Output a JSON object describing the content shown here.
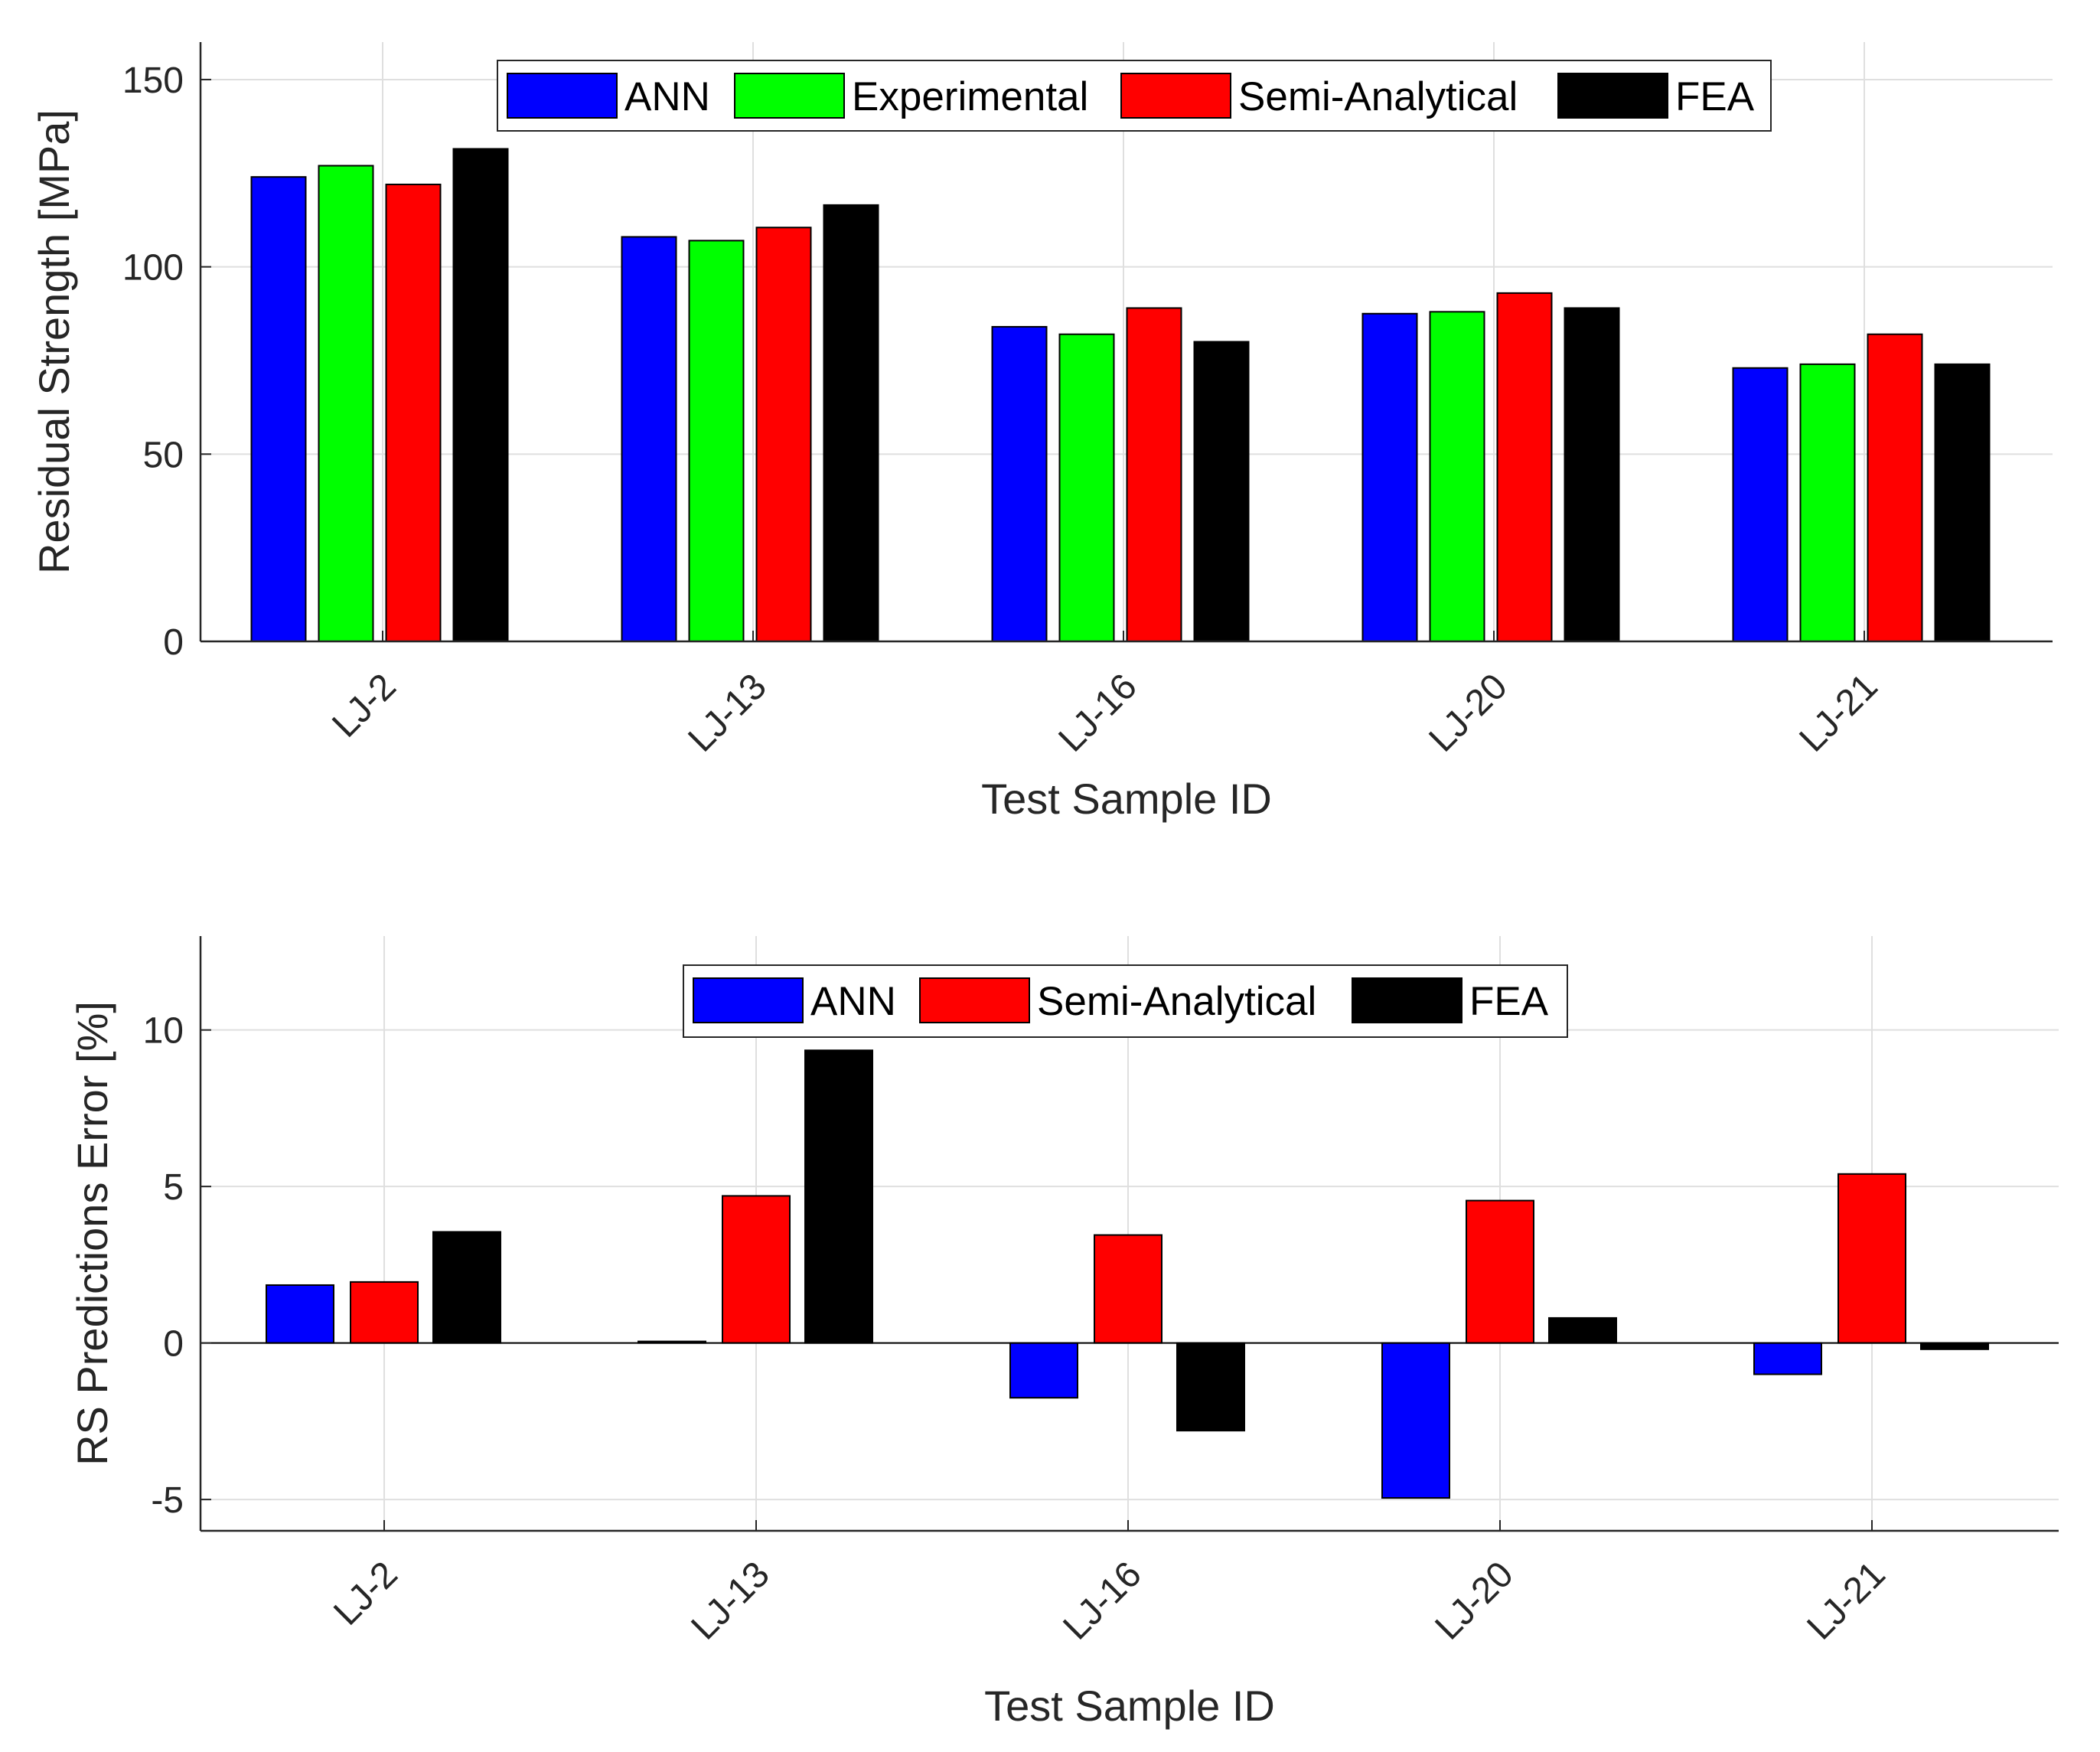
{
  "chart_data": [
    {
      "type": "bar",
      "title": "",
      "xlabel": "Test Sample ID",
      "ylabel": "Residual Strength [MPa]",
      "ylim": [
        0,
        160
      ],
      "yticks": [
        0,
        50,
        100,
        150
      ],
      "grid": true,
      "legend_position": "top-center",
      "categories": [
        "LJ-2",
        "LJ-13",
        "LJ-16",
        "LJ-20",
        "LJ-21"
      ],
      "series": [
        {
          "name": "ANN",
          "color": "#0000ff",
          "values": [
            124,
            108,
            84,
            87.5,
            73
          ]
        },
        {
          "name": "Experimental",
          "color": "#00ff00",
          "values": [
            127,
            107,
            82,
            88,
            74
          ]
        },
        {
          "name": "Semi-Analytical",
          "color": "#ff0000",
          "values": [
            122,
            110.5,
            89,
            93,
            82
          ]
        },
        {
          "name": "FEA",
          "color": "#000000",
          "values": [
            131.5,
            116.5,
            80,
            89,
            74
          ]
        }
      ]
    },
    {
      "type": "bar",
      "title": "",
      "xlabel": "Test Sample ID",
      "ylabel": "RS Predictions Error [%]",
      "ylim": [
        -6,
        13
      ],
      "yticks": [
        -5,
        0,
        5,
        10
      ],
      "grid": true,
      "legend_position": "top-center",
      "categories": [
        "LJ-2",
        "LJ-13",
        "LJ-16",
        "LJ-20",
        "LJ-21"
      ],
      "series": [
        {
          "name": "ANN",
          "color": "#0000ff",
          "values": [
            1.85,
            0.05,
            -1.75,
            -4.95,
            -1.0
          ]
        },
        {
          "name": "Semi-Analytical",
          "color": "#ff0000",
          "values": [
            1.95,
            4.7,
            3.45,
            4.55,
            5.4
          ]
        },
        {
          "name": "FEA",
          "color": "#000000",
          "values": [
            3.55,
            9.35,
            -2.8,
            0.8,
            -0.2
          ]
        }
      ]
    }
  ]
}
